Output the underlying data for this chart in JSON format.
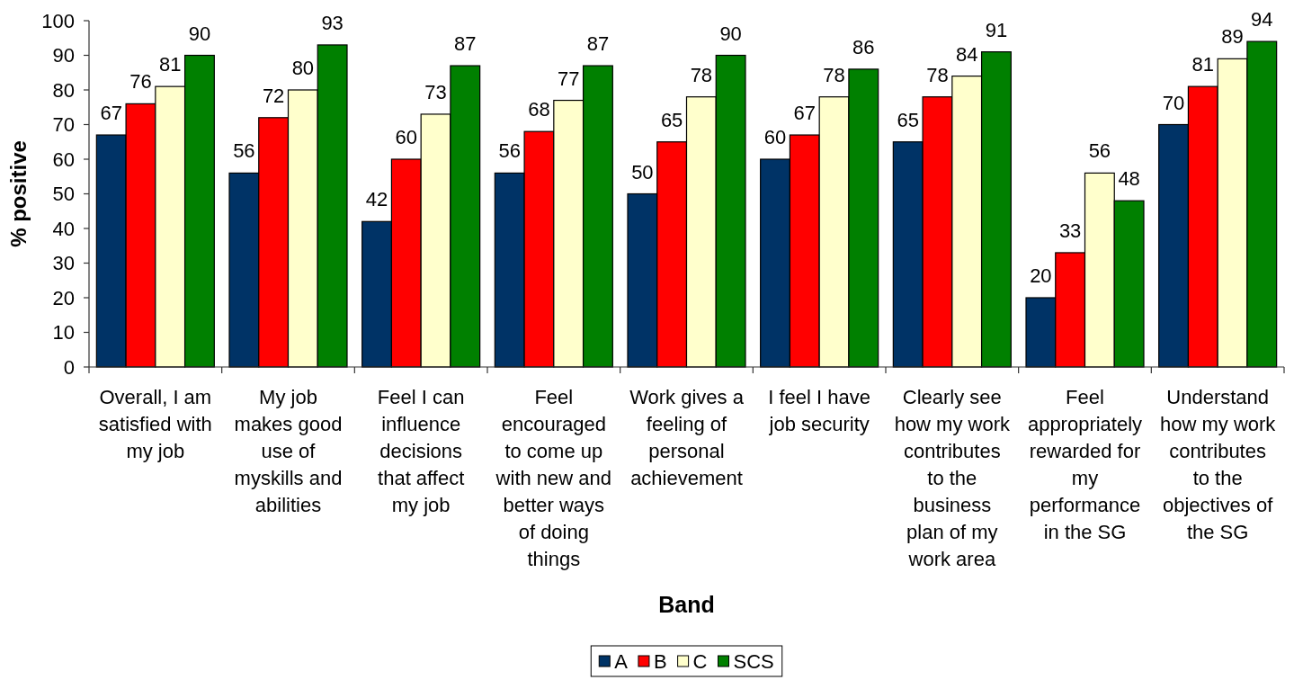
{
  "chart_data": {
    "type": "bar",
    "xlabel": "Band",
    "ylabel": "% positive",
    "categories": [
      "Overall, I am satisfied with my job",
      "My job makes good use of myskills and abilities",
      "Feel I can influence decisions that affect my job",
      "Feel encouraged to come up with new and better ways of doing things",
      "Work gives a feeling of personal achievement",
      "I feel I have job security",
      "Clearly see how my work contributes to the business plan of my work area",
      "Feel appropriately rewarded for my performance in the SG",
      "Understand how my work contributes to the objectives of the SG"
    ],
    "series": [
      {
        "name": "A",
        "color": "#003366",
        "values": [
          67,
          56,
          42,
          56,
          50,
          60,
          65,
          20,
          70
        ]
      },
      {
        "name": "B",
        "color": "#ff0000",
        "values": [
          76,
          72,
          60,
          68,
          65,
          67,
          78,
          33,
          81
        ]
      },
      {
        "name": "C",
        "color": "#ffffcc",
        "values": [
          81,
          80,
          73,
          77,
          78,
          78,
          84,
          56,
          89
        ]
      },
      {
        "name": "SCS",
        "color": "#008000",
        "values": [
          90,
          93,
          87,
          87,
          90,
          86,
          91,
          48,
          94
        ]
      }
    ],
    "ylim": [
      0,
      100
    ],
    "yticks": [
      0,
      10,
      20,
      30,
      40,
      50,
      60,
      70,
      80,
      90,
      100
    ],
    "data_labels": true,
    "legend": "bottom"
  }
}
